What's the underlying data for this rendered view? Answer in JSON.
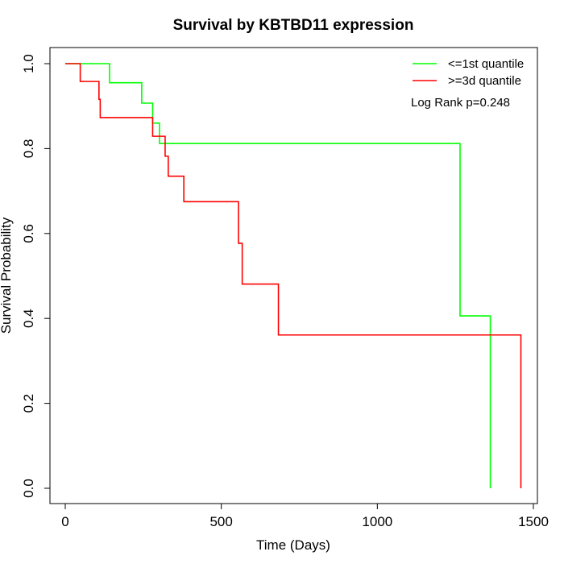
{
  "chart_data": {
    "type": "line",
    "title": "Survival by KBTBD11 expression",
    "xlabel": "Time (Days)",
    "ylabel": "Survival Probability",
    "xlim": [
      0,
      1500
    ],
    "ylim": [
      0,
      1
    ],
    "x_ticks": [
      "0",
      "500",
      "1000",
      "1500"
    ],
    "y_ticks": [
      "0.0",
      "0.2",
      "0.4",
      "0.6",
      "0.8",
      "1.0"
    ],
    "x_tick_values": [
      0,
      500,
      1000,
      1500
    ],
    "y_tick_values": [
      0,
      0.2,
      0.4,
      0.6,
      0.8,
      1.0
    ],
    "grid": false,
    "legend_position": "top-right",
    "annotation": "Log Rank p=0.248",
    "series": [
      {
        "name": "<=1st quantile",
        "color": "#00ff00",
        "steps": [
          [
            0,
            1.0
          ],
          [
            142,
            0.955
          ],
          [
            245,
            0.907
          ],
          [
            280,
            0.86
          ],
          [
            302,
            0.812
          ],
          [
            1265,
            0.406
          ],
          [
            1362,
            0.0
          ]
        ]
      },
      {
        "name": ">=3d quantile",
        "color": "#ff0000",
        "steps": [
          [
            0,
            1.0
          ],
          [
            48,
            0.958
          ],
          [
            108,
            0.916
          ],
          [
            112,
            0.873
          ],
          [
            280,
            0.829
          ],
          [
            320,
            0.782
          ],
          [
            330,
            0.735
          ],
          [
            380,
            0.675
          ],
          [
            555,
            0.577
          ],
          [
            567,
            0.481
          ],
          [
            683,
            0.361
          ],
          [
            1460,
            0.0
          ]
        ]
      }
    ]
  }
}
